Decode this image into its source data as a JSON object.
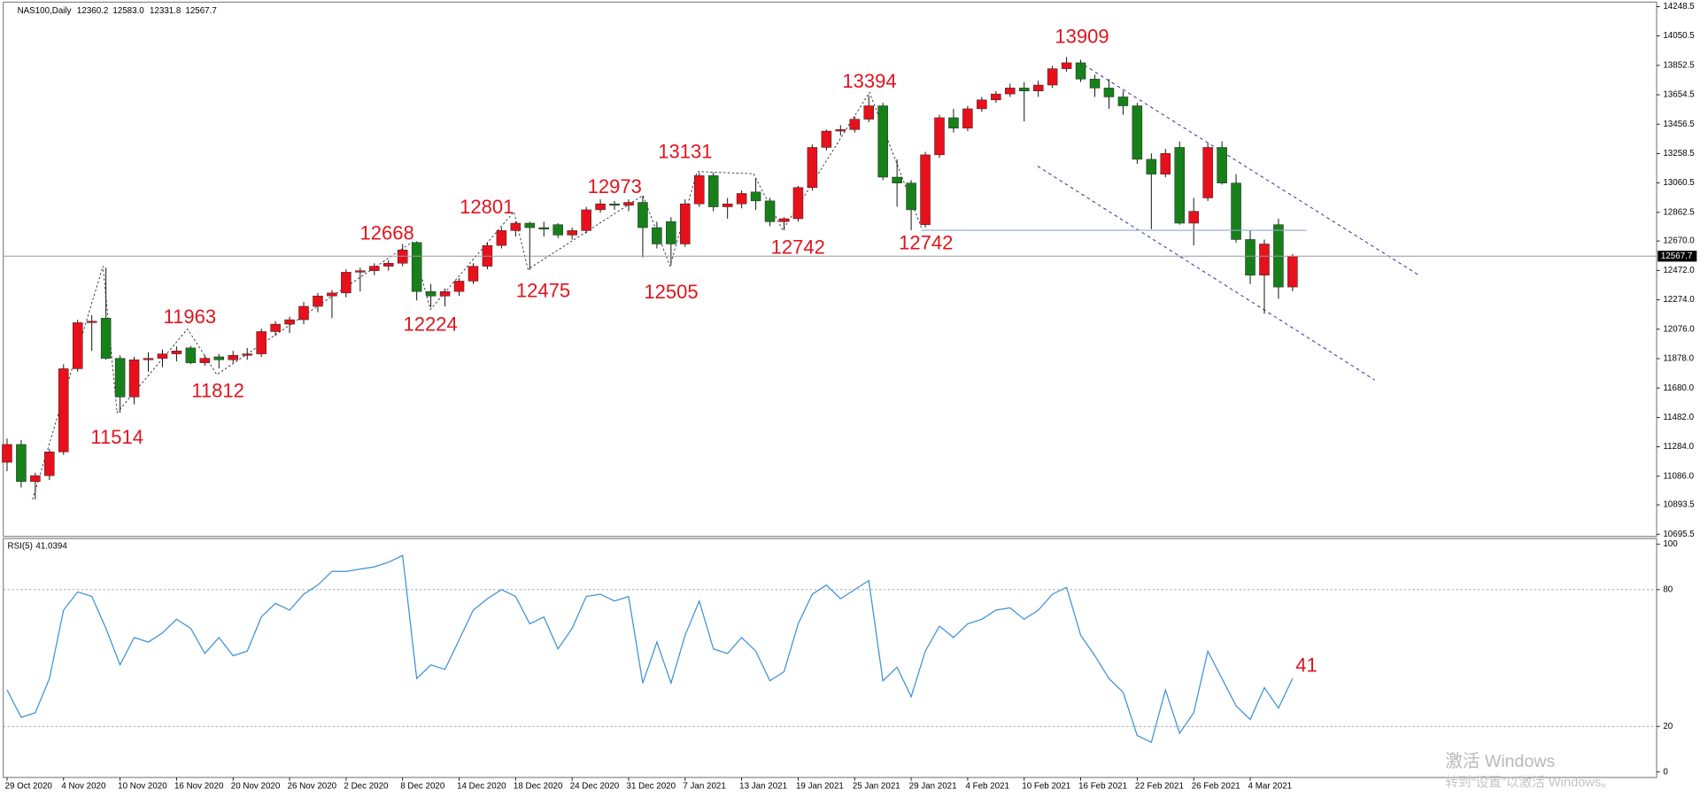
{
  "chart_data": [
    {
      "type": "candlestick",
      "title": "NAS100,Daily",
      "info_labels": [
        "12360.2",
        "12583.0",
        "12331.8",
        "12567.7"
      ],
      "up_color": "#e8101a",
      "down_color": "#17801a",
      "ylim": [
        10681,
        14278
      ],
      "yticks": [
        14248.5,
        14050.5,
        13852.5,
        13654.5,
        13456.5,
        13258.5,
        13060.5,
        12862.5,
        {
          "value": 12670,
          "label": "12670.0"
        },
        {
          "value": 12472,
          "label": "12472.0"
        },
        {
          "value": 12274,
          "label": "12274.0"
        },
        {
          "value": 12076,
          "label": "12076.0"
        },
        {
          "value": 11878,
          "label": "11878.0"
        },
        {
          "value": 11680,
          "label": "11680.0"
        },
        {
          "value": 11482,
          "label": "11482.0"
        },
        {
          "value": 11284,
          "label": "11284.0"
        },
        {
          "value": 11086,
          "label": "11086.0"
        },
        10893.5,
        10695.5
      ],
      "annotations": [
        11514,
        11963,
        11812,
        12668,
        12224,
        12801,
        12475,
        12973,
        12505,
        13131,
        12742,
        13394,
        12742,
        13909
      ],
      "ohlc": [
        [
          11180,
          11340,
          11120,
          11300
        ],
        [
          11300,
          11330,
          11010,
          11050
        ],
        [
          11050,
          11110,
          10930,
          11090
        ],
        [
          11090,
          11270,
          11060,
          11250
        ],
        [
          11250,
          11840,
          11230,
          11810
        ],
        [
          11810,
          12140,
          11790,
          12120
        ],
        [
          12120,
          12170,
          11930,
          12130
        ],
        [
          12150,
          12490,
          11870,
          11880
        ],
        [
          11880,
          11900,
          11514,
          11620
        ],
        [
          11620,
          11890,
          11570,
          11870
        ],
        [
          11870,
          11920,
          11790,
          11880
        ],
        [
          11880,
          11940,
          11820,
          11910
        ],
        [
          11910,
          11960,
          11860,
          11930
        ],
        [
          11950,
          11963,
          11840,
          11850
        ],
        [
          11850,
          11900,
          11830,
          11880
        ],
        [
          11890,
          11910,
          11812,
          11870
        ],
        [
          11870,
          11930,
          11850,
          11900
        ],
        [
          11900,
          11950,
          11870,
          11910
        ],
        [
          11910,
          12080,
          11890,
          12060
        ],
        [
          12060,
          12130,
          12030,
          12110
        ],
        [
          12110,
          12160,
          12050,
          12140
        ],
        [
          12140,
          12260,
          12110,
          12230
        ],
        [
          12230,
          12320,
          12190,
          12300
        ],
        [
          12300,
          12340,
          12150,
          12320
        ],
        [
          12320,
          12480,
          12290,
          12460
        ],
        [
          12460,
          12490,
          12330,
          12470
        ],
        [
          12470,
          12520,
          12440,
          12500
        ],
        [
          12500,
          12540,
          12470,
          12520
        ],
        [
          12520,
          12650,
          12500,
          12610
        ],
        [
          12660,
          12668,
          12270,
          12330
        ],
        [
          12330,
          12380,
          12224,
          12300
        ],
        [
          12300,
          12350,
          12230,
          12330
        ],
        [
          12330,
          12420,
          12300,
          12400
        ],
        [
          12400,
          12520,
          12380,
          12500
        ],
        [
          12500,
          12660,
          12480,
          12640
        ],
        [
          12640,
          12760,
          12620,
          12740
        ],
        [
          12740,
          12801,
          12700,
          12790
        ],
        [
          12790,
          12800,
          12475,
          12760
        ],
        [
          12760,
          12800,
          12700,
          12750
        ],
        [
          12780,
          12790,
          12690,
          12710
        ],
        [
          12710,
          12760,
          12680,
          12740
        ],
        [
          12740,
          12900,
          12720,
          12880
        ],
        [
          12880,
          12950,
          12860,
          12920
        ],
        [
          12920,
          12940,
          12880,
          12910
        ],
        [
          12910,
          12950,
          12870,
          12930
        ],
        [
          12930,
          12973,
          12560,
          12760
        ],
        [
          12760,
          12800,
          12620,
          12650
        ],
        [
          12800,
          12830,
          12505,
          12650
        ],
        [
          12650,
          12950,
          12630,
          12920
        ],
        [
          12920,
          13131,
          12900,
          13110
        ],
        [
          13110,
          13130,
          12870,
          12900
        ],
        [
          12900,
          12960,
          12820,
          12920
        ],
        [
          12920,
          13010,
          12890,
          12990
        ],
        [
          13000,
          13090,
          12880,
          12940
        ],
        [
          12940,
          12960,
          12770,
          12800
        ],
        [
          12800,
          12830,
          12742,
          12820
        ],
        [
          12820,
          13040,
          12800,
          13030
        ],
        [
          13030,
          13320,
          13010,
          13300
        ],
        [
          13300,
          13420,
          13280,
          13410
        ],
        [
          13410,
          13450,
          13380,
          13420
        ],
        [
          13420,
          13510,
          13400,
          13490
        ],
        [
          13490,
          13650,
          13470,
          13580
        ],
        [
          13580,
          13600,
          13080,
          13100
        ],
        [
          13100,
          13220,
          12900,
          13060
        ],
        [
          13060,
          13080,
          12742,
          12880
        ],
        [
          12780,
          13270,
          12760,
          13250
        ],
        [
          13250,
          13520,
          13230,
          13500
        ],
        [
          13500,
          13560,
          13400,
          13430
        ],
        [
          13430,
          13580,
          13410,
          13560
        ],
        [
          13560,
          13640,
          13540,
          13620
        ],
        [
          13620,
          13680,
          13600,
          13660
        ],
        [
          13660,
          13730,
          13640,
          13700
        ],
        [
          13700,
          13740,
          13475,
          13680
        ],
        [
          13680,
          13750,
          13640,
          13720
        ],
        [
          13720,
          13850,
          13700,
          13830
        ],
        [
          13830,
          13909,
          13810,
          13870
        ],
        [
          13870,
          13890,
          13740,
          13760
        ],
        [
          13760,
          13790,
          13640,
          13700
        ],
        [
          13700,
          13760,
          13560,
          13640
        ],
        [
          13640,
          13680,
          13520,
          13580
        ],
        [
          13580,
          13600,
          13190,
          13220
        ],
        [
          13220,
          13260,
          12750,
          13120
        ],
        [
          13120,
          13290,
          13100,
          13260
        ],
        [
          13300,
          13340,
          12780,
          12790
        ],
        [
          12790,
          12960,
          12640,
          12870
        ],
        [
          12960,
          13330,
          12940,
          13300
        ],
        [
          13300,
          13340,
          13050,
          13060
        ],
        [
          13060,
          13120,
          12660,
          12680
        ],
        [
          12680,
          12740,
          12380,
          12440
        ],
        [
          12440,
          12680,
          12180,
          12650
        ],
        [
          12780,
          12820,
          12280,
          12360
        ],
        [
          12360.2,
          12583,
          12331.8,
          12567.7
        ]
      ]
    },
    {
      "type": "line",
      "title": "RSI(5)",
      "color": "#3b8fd8",
      "ylim": [
        -2.4,
        102.4
      ],
      "yticks": [
        100,
        80,
        20,
        0
      ],
      "levels": [
        80,
        20
      ],
      "annotations": [
        41
      ],
      "categories": [
        "29 Oct 2020",
        null,
        null,
        null,
        "4 Nov 2020",
        null,
        null,
        null,
        "10 Nov 2020",
        null,
        null,
        null,
        "16 Nov 2020",
        null,
        null,
        null,
        "20 Nov 2020",
        null,
        null,
        null,
        "26 Nov 2020",
        null,
        null,
        null,
        "2 Dec 2020",
        null,
        null,
        null,
        "8 Dec 2020",
        null,
        null,
        null,
        "14 Dec 2020",
        null,
        null,
        null,
        "18 Dec 2020",
        null,
        null,
        null,
        "24 Dec 2020",
        null,
        null,
        null,
        "31 Dec 2020",
        null,
        null,
        null,
        "7 Jan 2021",
        null,
        null,
        null,
        "13 Jan 2021",
        null,
        null,
        null,
        "19 Jan 2021",
        null,
        null,
        null,
        "25 Jan 2021",
        null,
        null,
        null,
        "29 Jan 2021",
        null,
        null,
        null,
        "4 Feb 2021",
        null,
        null,
        null,
        "10 Feb 2021",
        null,
        null,
        null,
        "16 Feb 2021",
        null,
        null,
        null,
        "22 Feb 2021",
        null,
        null,
        null,
        "26 Feb 2021",
        null,
        null,
        null,
        "4 Mar 2021",
        null,
        null,
        null
      ],
      "values": [
        36,
        24,
        26,
        41,
        71,
        79,
        77,
        63,
        47,
        59,
        57,
        61,
        67,
        63,
        52,
        59,
        51,
        53,
        68,
        74,
        71,
        78,
        82,
        88,
        88,
        89,
        90,
        92,
        95,
        41,
        47,
        45,
        58,
        71,
        76,
        80,
        77,
        65,
        68,
        54,
        63,
        77,
        78,
        75,
        77,
        39,
        57,
        39,
        60,
        75,
        54,
        52,
        59,
        53,
        40,
        44,
        65,
        78,
        82,
        76,
        80,
        84,
        40,
        46,
        33,
        53,
        64,
        59,
        65,
        67,
        71,
        72,
        67,
        71,
        78,
        81,
        60,
        51,
        41,
        35,
        16,
        13,
        36,
        17,
        26,
        53,
        41,
        29,
        23,
        37,
        28,
        41.0394
      ]
    }
  ],
  "watermark": {
    "title": "激活 Windows",
    "subtitle": "转到“设置”以激活 Windows。"
  }
}
